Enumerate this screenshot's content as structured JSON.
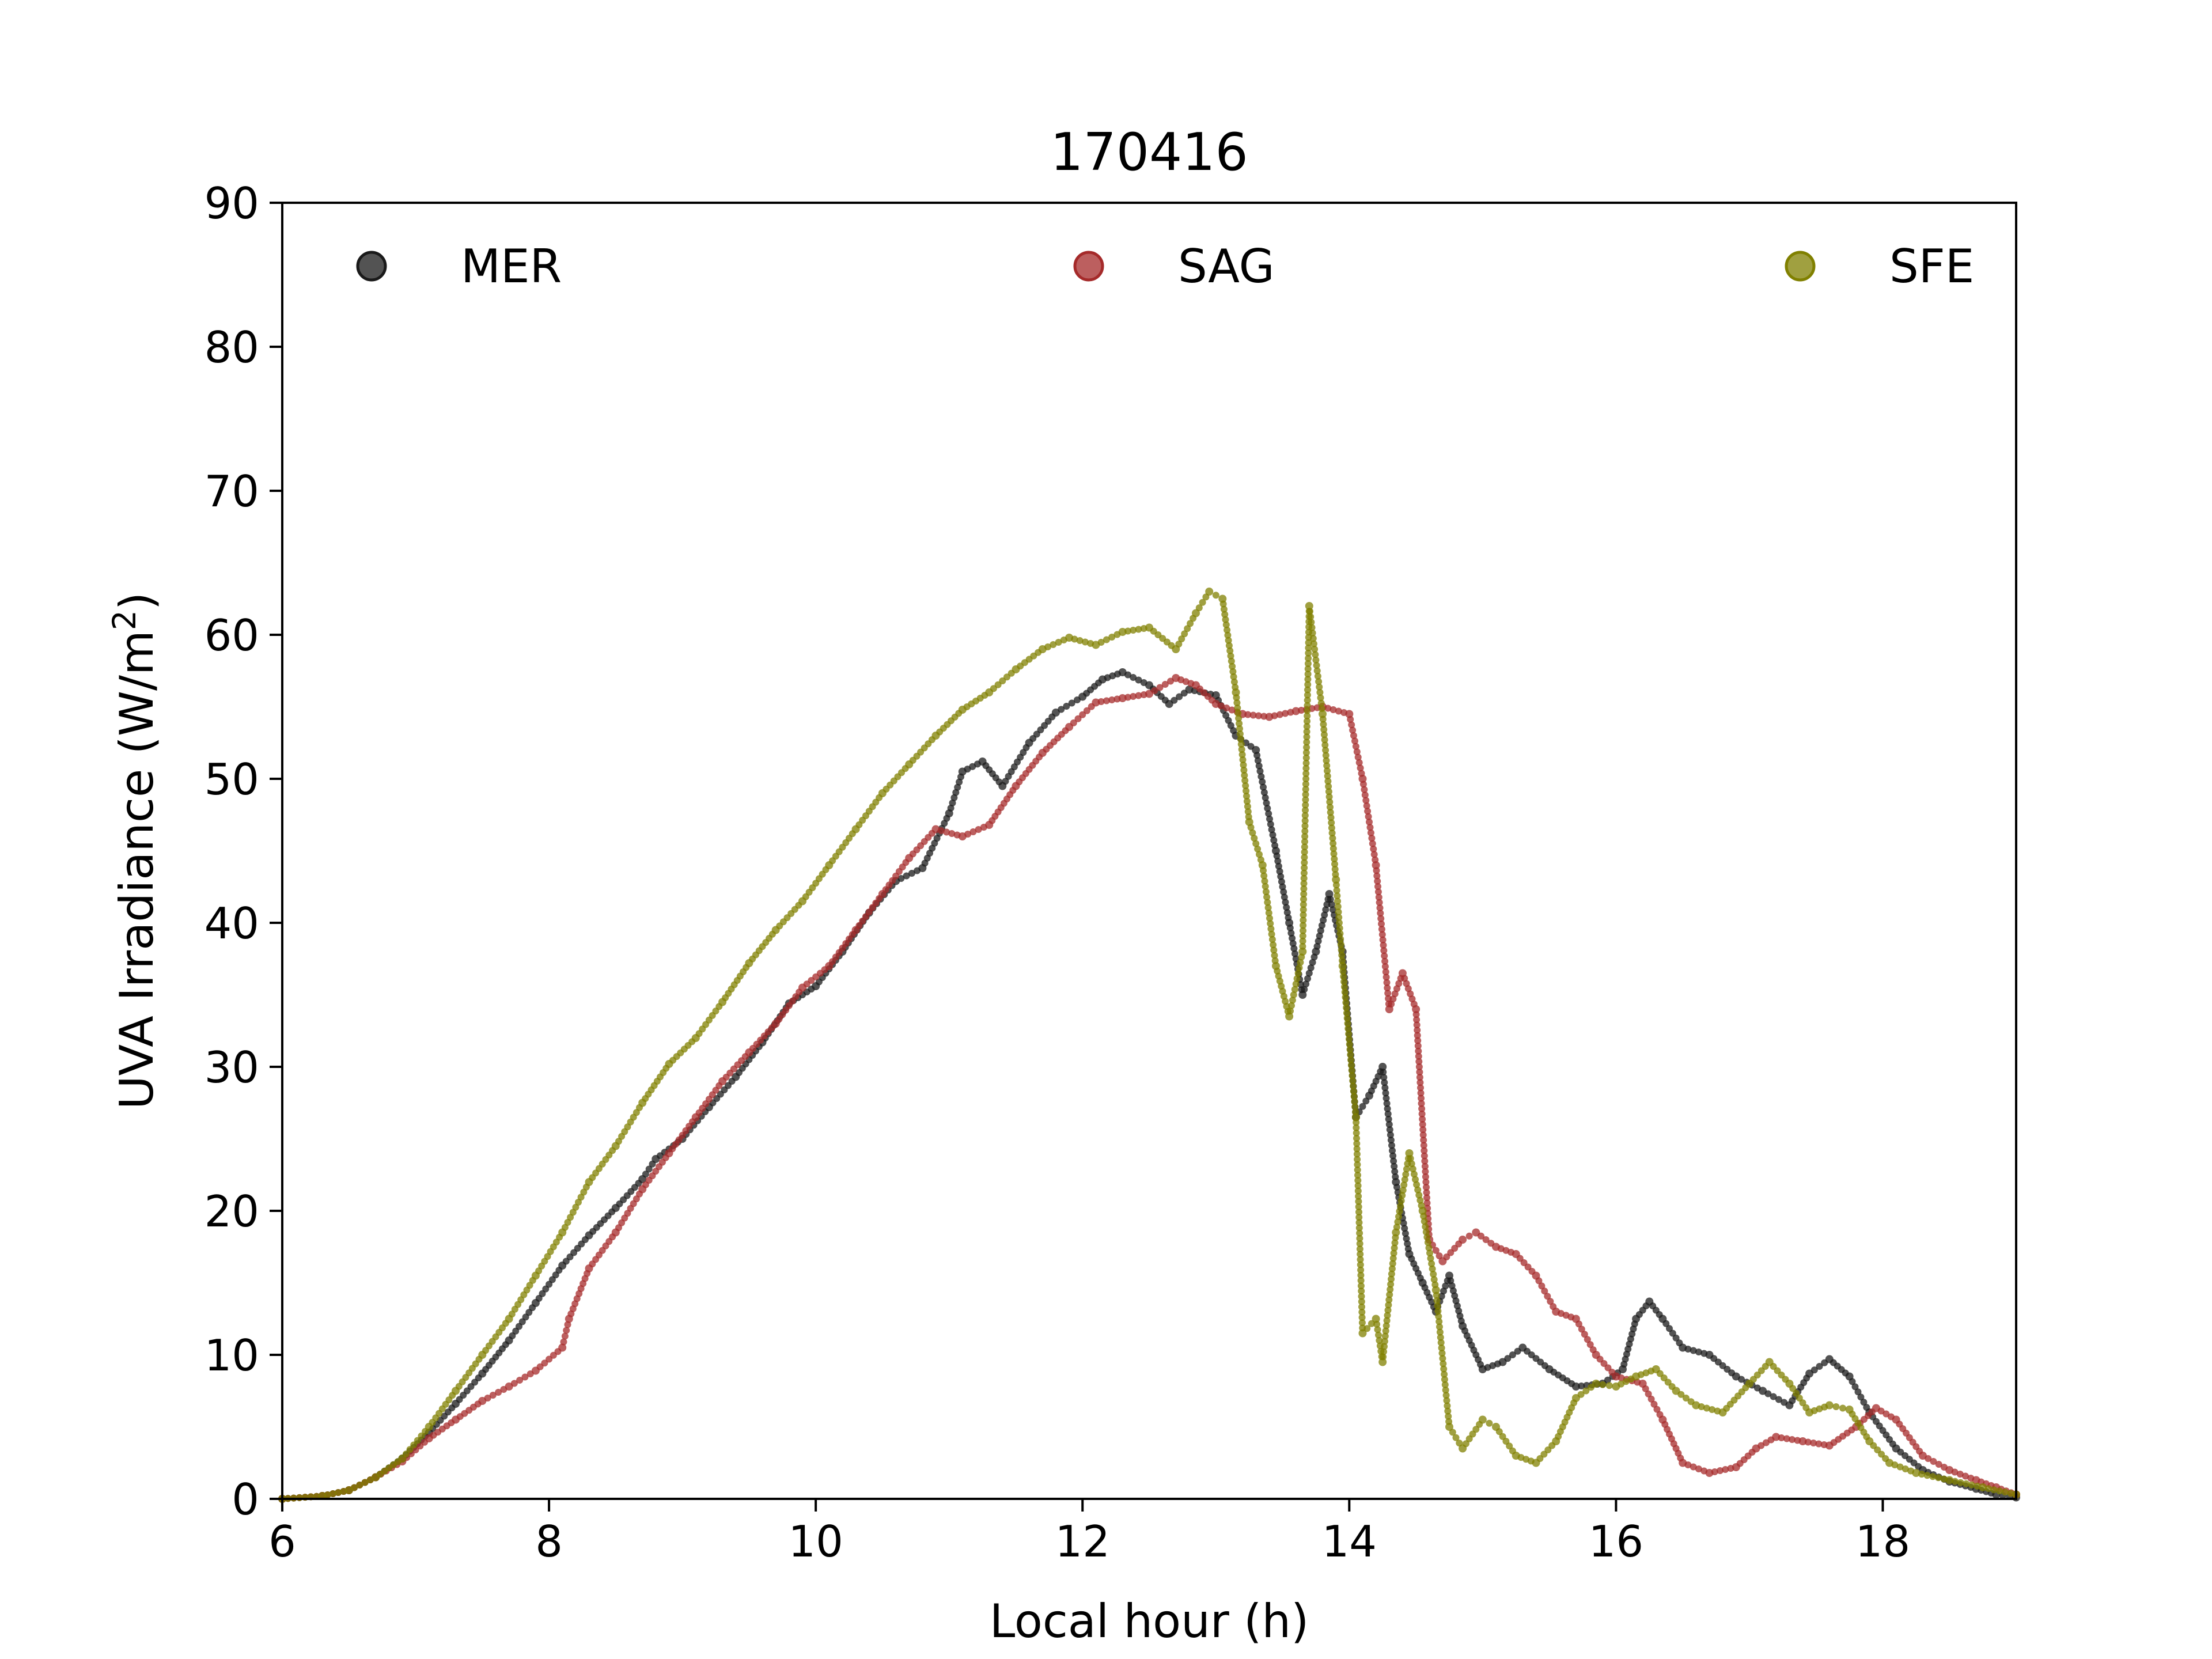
{
  "chart_data": {
    "type": "scatter",
    "title": "170416",
    "xlabel": "Local hour (h)",
    "ylabel_main": "UVA Irradiance (W/m",
    "ylabel_sup": "2",
    "ylabel_tail": ")",
    "xlim": [
      6,
      19
    ],
    "ylim": [
      0,
      90
    ],
    "xticks": [
      6,
      8,
      10,
      12,
      14,
      16,
      18
    ],
    "xtick_labels": [
      "6",
      "8",
      "10",
      "12",
      "14",
      "16",
      "18"
    ],
    "yticks": [
      0,
      10,
      20,
      30,
      40,
      50,
      60,
      70,
      80,
      90
    ],
    "ytick_labels": [
      "0",
      "10",
      "20",
      "30",
      "40",
      "50",
      "60",
      "70",
      "80",
      "90"
    ],
    "grid": false,
    "legend": {
      "placement": "top",
      "columns": 3
    },
    "series": [
      {
        "name": "MER",
        "color": "#1a1a1a",
        "points": [
          [
            6.0,
            0.0
          ],
          [
            6.3,
            0.2
          ],
          [
            6.5,
            0.6
          ],
          [
            6.7,
            1.5
          ],
          [
            6.9,
            2.8
          ],
          [
            7.1,
            4.6
          ],
          [
            7.3,
            6.6
          ],
          [
            7.5,
            8.7
          ],
          [
            7.7,
            11.0
          ],
          [
            7.9,
            13.6
          ],
          [
            8.1,
            16.2
          ],
          [
            8.3,
            18.3
          ],
          [
            8.5,
            20.2
          ],
          [
            8.7,
            22.2
          ],
          [
            8.8,
            23.6
          ],
          [
            9.0,
            25.0
          ],
          [
            9.2,
            27.2
          ],
          [
            9.4,
            29.3
          ],
          [
            9.6,
            31.7
          ],
          [
            9.8,
            34.4
          ],
          [
            10.0,
            35.6
          ],
          [
            10.2,
            38.0
          ],
          [
            10.4,
            40.7
          ],
          [
            10.6,
            42.9
          ],
          [
            10.8,
            43.8
          ],
          [
            11.0,
            47.6
          ],
          [
            11.1,
            50.5
          ],
          [
            11.25,
            51.2
          ],
          [
            11.4,
            49.5
          ],
          [
            11.6,
            52.5
          ],
          [
            11.8,
            54.6
          ],
          [
            12.0,
            55.7
          ],
          [
            12.15,
            56.9
          ],
          [
            12.3,
            57.4
          ],
          [
            12.5,
            56.5
          ],
          [
            12.65,
            55.2
          ],
          [
            12.8,
            56.2
          ],
          [
            13.0,
            55.8
          ],
          [
            13.15,
            53.0
          ],
          [
            13.3,
            52.0
          ],
          [
            13.45,
            45.0
          ],
          [
            13.55,
            40.0
          ],
          [
            13.65,
            35.0
          ],
          [
            13.75,
            38.0
          ],
          [
            13.85,
            42.0
          ],
          [
            13.95,
            38.0
          ],
          [
            14.05,
            26.5
          ],
          [
            14.15,
            28.0
          ],
          [
            14.25,
            30.0
          ],
          [
            14.35,
            22.0
          ],
          [
            14.45,
            17.0
          ],
          [
            14.55,
            15.0
          ],
          [
            14.65,
            13.0
          ],
          [
            14.75,
            15.5
          ],
          [
            14.85,
            12.0
          ],
          [
            15.0,
            9.0
          ],
          [
            15.15,
            9.5
          ],
          [
            15.3,
            10.5
          ],
          [
            15.5,
            9.0
          ],
          [
            15.7,
            7.8
          ],
          [
            15.9,
            8.0
          ],
          [
            16.05,
            9.0
          ],
          [
            16.15,
            12.5
          ],
          [
            16.25,
            13.7
          ],
          [
            16.35,
            12.5
          ],
          [
            16.5,
            10.5
          ],
          [
            16.7,
            10.0
          ],
          [
            16.9,
            8.5
          ],
          [
            17.1,
            7.5
          ],
          [
            17.3,
            6.5
          ],
          [
            17.45,
            8.7
          ],
          [
            17.6,
            9.7
          ],
          [
            17.75,
            8.5
          ],
          [
            17.9,
            6.0
          ],
          [
            18.1,
            3.5
          ],
          [
            18.3,
            2.0
          ],
          [
            18.5,
            1.2
          ],
          [
            18.7,
            0.7
          ],
          [
            18.85,
            0.3
          ],
          [
            19.0,
            0.1
          ]
        ]
      },
      {
        "name": "SAG",
        "color": "#a52a2a",
        "points": [
          [
            6.0,
            0.0
          ],
          [
            6.3,
            0.2
          ],
          [
            6.5,
            0.6
          ],
          [
            6.7,
            1.5
          ],
          [
            6.9,
            2.6
          ],
          [
            7.1,
            4.2
          ],
          [
            7.3,
            5.5
          ],
          [
            7.5,
            6.8
          ],
          [
            7.7,
            7.8
          ],
          [
            7.9,
            8.9
          ],
          [
            8.1,
            10.5
          ],
          [
            8.15,
            12.5
          ],
          [
            8.3,
            16.0
          ],
          [
            8.5,
            18.5
          ],
          [
            8.7,
            21.5
          ],
          [
            8.9,
            24.0
          ],
          [
            9.1,
            26.5
          ],
          [
            9.3,
            29.0
          ],
          [
            9.5,
            31.0
          ],
          [
            9.7,
            33.0
          ],
          [
            9.9,
            35.5
          ],
          [
            10.1,
            37.0
          ],
          [
            10.3,
            39.5
          ],
          [
            10.5,
            42.0
          ],
          [
            10.7,
            44.5
          ],
          [
            10.9,
            46.5
          ],
          [
            11.1,
            46.0
          ],
          [
            11.3,
            46.8
          ],
          [
            11.5,
            49.5
          ],
          [
            11.7,
            51.8
          ],
          [
            11.9,
            53.6
          ],
          [
            12.1,
            55.3
          ],
          [
            12.3,
            55.6
          ],
          [
            12.5,
            55.9
          ],
          [
            12.7,
            57.0
          ],
          [
            12.85,
            56.5
          ],
          [
            13.0,
            55.2
          ],
          [
            13.2,
            54.5
          ],
          [
            13.4,
            54.3
          ],
          [
            13.6,
            54.7
          ],
          [
            13.8,
            55.0
          ],
          [
            14.0,
            54.5
          ],
          [
            14.1,
            50.0
          ],
          [
            14.2,
            44.0
          ],
          [
            14.3,
            34.0
          ],
          [
            14.4,
            36.5
          ],
          [
            14.5,
            34.0
          ],
          [
            14.6,
            18.0
          ],
          [
            14.7,
            16.5
          ],
          [
            14.85,
            18.0
          ],
          [
            14.95,
            18.5
          ],
          [
            15.1,
            17.5
          ],
          [
            15.25,
            17.0
          ],
          [
            15.4,
            15.5
          ],
          [
            15.55,
            13.0
          ],
          [
            15.7,
            12.5
          ],
          [
            15.85,
            10.0
          ],
          [
            16.0,
            8.5
          ],
          [
            16.2,
            8.0
          ],
          [
            16.35,
            5.5
          ],
          [
            16.5,
            2.5
          ],
          [
            16.7,
            1.8
          ],
          [
            16.9,
            2.2
          ],
          [
            17.05,
            3.5
          ],
          [
            17.2,
            4.3
          ],
          [
            17.4,
            4.0
          ],
          [
            17.6,
            3.7
          ],
          [
            17.8,
            5.0
          ],
          [
            17.95,
            6.3
          ],
          [
            18.1,
            5.5
          ],
          [
            18.3,
            3.0
          ],
          [
            18.5,
            2.0
          ],
          [
            18.7,
            1.3
          ],
          [
            18.85,
            0.8
          ],
          [
            19.0,
            0.3
          ]
        ]
      },
      {
        "name": "SFE",
        "color": "#808000",
        "points": [
          [
            6.0,
            0.0
          ],
          [
            6.3,
            0.2
          ],
          [
            6.5,
            0.6
          ],
          [
            6.7,
            1.5
          ],
          [
            6.9,
            2.8
          ],
          [
            7.1,
            5.0
          ],
          [
            7.3,
            7.5
          ],
          [
            7.5,
            10.0
          ],
          [
            7.7,
            12.5
          ],
          [
            7.9,
            15.5
          ],
          [
            8.1,
            18.5
          ],
          [
            8.3,
            22.0
          ],
          [
            8.5,
            24.5
          ],
          [
            8.7,
            27.5
          ],
          [
            8.9,
            30.2
          ],
          [
            9.1,
            32.0
          ],
          [
            9.3,
            34.5
          ],
          [
            9.5,
            37.2
          ],
          [
            9.7,
            39.5
          ],
          [
            9.9,
            41.5
          ],
          [
            10.1,
            44.0
          ],
          [
            10.3,
            46.5
          ],
          [
            10.5,
            49.0
          ],
          [
            10.7,
            51.0
          ],
          [
            10.9,
            53.0
          ],
          [
            11.1,
            54.8
          ],
          [
            11.3,
            56.0
          ],
          [
            11.5,
            57.6
          ],
          [
            11.7,
            59.0
          ],
          [
            11.9,
            59.8
          ],
          [
            12.1,
            59.3
          ],
          [
            12.3,
            60.2
          ],
          [
            12.5,
            60.5
          ],
          [
            12.7,
            59.0
          ],
          [
            12.85,
            61.5
          ],
          [
            12.95,
            63.0
          ],
          [
            13.05,
            62.5
          ],
          [
            13.15,
            56.0
          ],
          [
            13.25,
            47.0
          ],
          [
            13.35,
            44.0
          ],
          [
            13.45,
            37.0
          ],
          [
            13.55,
            33.5
          ],
          [
            13.65,
            38.0
          ],
          [
            13.7,
            62.0
          ],
          [
            13.8,
            54.5
          ],
          [
            13.9,
            43.0
          ],
          [
            13.95,
            37.0
          ],
          [
            14.05,
            26.5
          ],
          [
            14.1,
            11.5
          ],
          [
            14.2,
            12.5
          ],
          [
            14.25,
            9.5
          ],
          [
            14.35,
            18.5
          ],
          [
            14.45,
            24.0
          ],
          [
            14.55,
            20.0
          ],
          [
            14.65,
            14.5
          ],
          [
            14.75,
            5.0
          ],
          [
            14.85,
            3.5
          ],
          [
            15.0,
            5.5
          ],
          [
            15.1,
            5.0
          ],
          [
            15.25,
            3.0
          ],
          [
            15.4,
            2.5
          ],
          [
            15.55,
            4.0
          ],
          [
            15.7,
            7.0
          ],
          [
            15.85,
            8.0
          ],
          [
            16.0,
            7.8
          ],
          [
            16.15,
            8.5
          ],
          [
            16.3,
            9.0
          ],
          [
            16.45,
            7.5
          ],
          [
            16.6,
            6.5
          ],
          [
            16.8,
            6.0
          ],
          [
            17.0,
            8.0
          ],
          [
            17.15,
            9.5
          ],
          [
            17.3,
            8.0
          ],
          [
            17.45,
            6.0
          ],
          [
            17.6,
            6.5
          ],
          [
            17.75,
            6.2
          ],
          [
            17.9,
            4.0
          ],
          [
            18.05,
            2.5
          ],
          [
            18.25,
            1.8
          ],
          [
            18.5,
            1.3
          ],
          [
            18.75,
            0.8
          ],
          [
            19.0,
            0.3
          ]
        ]
      }
    ]
  }
}
